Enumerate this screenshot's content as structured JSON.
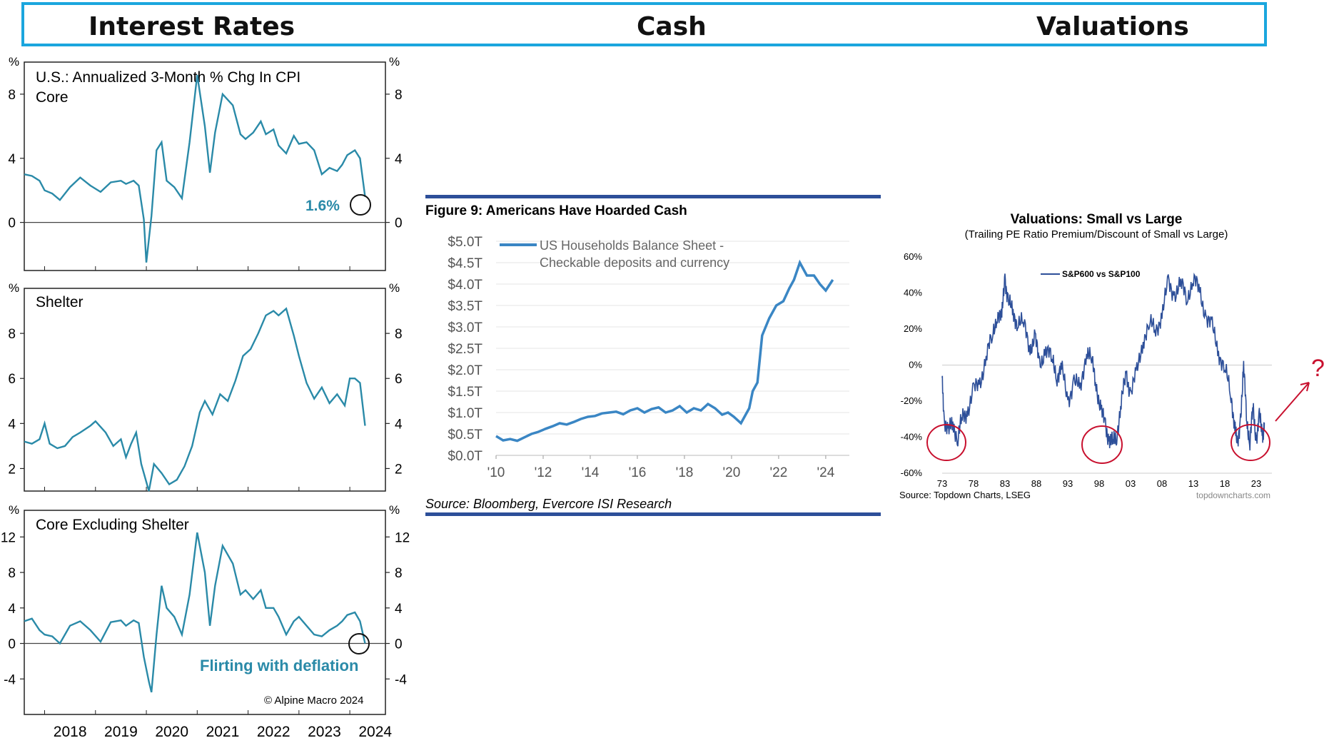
{
  "header": {
    "col1": "Interest Rates",
    "col2": "Cash",
    "col3": "Valuations"
  },
  "colors": {
    "header_border": "#1ba6de",
    "teal_line": "#2a8aa8",
    "teal_text": "#2a8aa8",
    "blue_line": "#3a86c4",
    "navy_line": "#2d4f99",
    "red_circle": "#c8102e"
  },
  "chart_data": [
    {
      "type": "line",
      "title": "U.S.: Annualized 3-Month % Chg In CPI Core",
      "unit_left": "%",
      "unit_right": "%",
      "ylim": [
        -3,
        10
      ],
      "yticks": [
        0,
        4,
        8
      ],
      "x_tick_labels": [
        "2018",
        "2019",
        "2020",
        "2021",
        "2022",
        "2023",
        "2024"
      ],
      "x_range": [
        2017.6,
        2024.7
      ],
      "annotation": "1.6%",
      "series": [
        {
          "name": "CPI Core",
          "x": [
            2017.6,
            2017.75,
            2017.9,
            2018.0,
            2018.15,
            2018.3,
            2018.5,
            2018.7,
            2018.9,
            2019.1,
            2019.3,
            2019.5,
            2019.6,
            2019.75,
            2019.85,
            2019.95,
            2020.0,
            2020.1,
            2020.2,
            2020.3,
            2020.4,
            2020.55,
            2020.7,
            2020.85,
            2021.0,
            2021.15,
            2021.25,
            2021.35,
            2021.5,
            2021.7,
            2021.85,
            2021.95,
            2022.1,
            2022.25,
            2022.35,
            2022.5,
            2022.6,
            2022.75,
            2022.9,
            2023.0,
            2023.15,
            2023.3,
            2023.45,
            2023.6,
            2023.75,
            2023.85,
            2023.95,
            2024.1,
            2024.2,
            2024.3
          ],
          "values": [
            3.0,
            2.9,
            2.6,
            2.0,
            1.8,
            1.4,
            2.2,
            2.8,
            2.3,
            1.9,
            2.5,
            2.6,
            2.4,
            2.6,
            2.3,
            0.2,
            -2.5,
            0.4,
            4.5,
            5.0,
            2.6,
            2.2,
            1.5,
            5.0,
            9.2,
            6.0,
            3.1,
            5.6,
            8.0,
            7.3,
            5.5,
            5.2,
            5.6,
            6.3,
            5.5,
            5.8,
            4.8,
            4.3,
            5.4,
            4.9,
            5.0,
            4.5,
            3.0,
            3.4,
            3.2,
            3.6,
            4.2,
            4.5,
            4.0,
            1.6
          ]
        }
      ]
    },
    {
      "type": "line",
      "title": "Shelter",
      "unit_left": "%",
      "unit_right": "%",
      "ylim": [
        1,
        10
      ],
      "yticks": [
        2,
        4,
        6,
        8
      ],
      "x_range": [
        2017.6,
        2024.7
      ],
      "series": [
        {
          "name": "Shelter",
          "x": [
            2017.6,
            2017.75,
            2017.9,
            2018.0,
            2018.1,
            2018.25,
            2018.4,
            2018.55,
            2018.7,
            2018.9,
            2019.0,
            2019.2,
            2019.35,
            2019.5,
            2019.6,
            2019.7,
            2019.8,
            2019.9,
            2020.05,
            2020.15,
            2020.3,
            2020.45,
            2020.6,
            2020.75,
            2020.9,
            2021.05,
            2021.15,
            2021.3,
            2021.45,
            2021.6,
            2021.75,
            2021.9,
            2022.05,
            2022.2,
            2022.35,
            2022.5,
            2022.6,
            2022.75,
            2022.9,
            2023.0,
            2023.15,
            2023.3,
            2023.45,
            2023.6,
            2023.75,
            2023.9,
            2024.0,
            2024.1,
            2024.2,
            2024.3
          ],
          "values": [
            3.2,
            3.1,
            3.3,
            4.0,
            3.1,
            2.9,
            3.0,
            3.4,
            3.6,
            3.9,
            4.1,
            3.6,
            3.0,
            3.3,
            2.5,
            3.1,
            3.6,
            2.2,
            1.0,
            2.2,
            1.8,
            1.3,
            1.5,
            2.1,
            3.0,
            4.5,
            5.0,
            4.4,
            5.3,
            5.0,
            5.9,
            7.0,
            7.3,
            8.0,
            8.8,
            9.0,
            8.8,
            9.1,
            7.9,
            7.0,
            5.8,
            5.1,
            5.6,
            4.9,
            5.3,
            4.8,
            6.0,
            6.0,
            5.8,
            3.9
          ]
        }
      ]
    },
    {
      "type": "line",
      "title": "Core Excluding Shelter",
      "unit_left": "%",
      "unit_right": "%",
      "ylim": [
        -8,
        15
      ],
      "yticks": [
        -4,
        0,
        4,
        8,
        12
      ],
      "x_range": [
        2017.6,
        2024.7
      ],
      "annotation": "Flirting with deflation",
      "credit": "© Alpine Macro 2024",
      "series": [
        {
          "name": "Core ex Shelter",
          "x": [
            2017.6,
            2017.75,
            2017.9,
            2018.0,
            2018.15,
            2018.3,
            2018.5,
            2018.7,
            2018.9,
            2019.1,
            2019.3,
            2019.5,
            2019.6,
            2019.75,
            2019.85,
            2019.95,
            2020.05,
            2020.1,
            2020.2,
            2020.3,
            2020.4,
            2020.55,
            2020.7,
            2020.85,
            2021.0,
            2021.15,
            2021.25,
            2021.35,
            2021.5,
            2021.7,
            2021.85,
            2021.95,
            2022.1,
            2022.25,
            2022.35,
            2022.5,
            2022.6,
            2022.75,
            2022.9,
            2023.0,
            2023.15,
            2023.3,
            2023.45,
            2023.6,
            2023.75,
            2023.85,
            2023.95,
            2024.1,
            2024.2,
            2024.3
          ],
          "values": [
            2.5,
            2.8,
            1.5,
            1.0,
            0.8,
            0.0,
            2.0,
            2.5,
            1.5,
            0.2,
            2.4,
            2.6,
            2.0,
            2.6,
            2.3,
            -1.5,
            -4.3,
            -5.5,
            1.0,
            6.5,
            4.0,
            3.0,
            1.0,
            5.5,
            12.5,
            8.0,
            2.0,
            6.5,
            11.0,
            9.0,
            5.5,
            6.0,
            5.0,
            6.0,
            4.0,
            4.0,
            3.0,
            1.0,
            2.5,
            3.0,
            2.0,
            1.0,
            0.8,
            1.5,
            2.0,
            2.5,
            3.2,
            3.5,
            2.5,
            0.0
          ]
        }
      ]
    },
    {
      "type": "line",
      "title": "Figure 9: Americans Have Hoarded Cash",
      "legend": [
        "US Households Balance Sheet -",
        "Checkable deposits and currency"
      ],
      "source": "Source: Bloomberg, Evercore ISI Research",
      "ylim": [
        0,
        5
      ],
      "ytick_labels": [
        "$0.0T",
        "$0.5T",
        "$1.0T",
        "$1.5T",
        "$2.0T",
        "$2.5T",
        "$3.0T",
        "$3.5T",
        "$4.0T",
        "$4.5T",
        "$5.0T"
      ],
      "ytick_values": [
        0,
        0.5,
        1,
        1.5,
        2,
        2.5,
        3,
        3.5,
        4,
        4.5,
        5
      ],
      "x_tick_labels": [
        "'10",
        "'12",
        "'14",
        "'16",
        "'18",
        "'20",
        "'22",
        "'24"
      ],
      "x_tick_values": [
        2010,
        2012,
        2014,
        2016,
        2018,
        2020,
        2022,
        2024
      ],
      "x_range": [
        2010,
        2024.7
      ],
      "series": [
        {
          "name": "US Households Balance Sheet - Checkable deposits and currency",
          "x": [
            2010.0,
            2010.3,
            2010.6,
            2010.9,
            2011.2,
            2011.5,
            2011.8,
            2012.1,
            2012.4,
            2012.7,
            2013.0,
            2013.3,
            2013.6,
            2013.9,
            2014.2,
            2014.5,
            2014.8,
            2015.1,
            2015.4,
            2015.7,
            2016.0,
            2016.3,
            2016.6,
            2016.9,
            2017.2,
            2017.5,
            2017.8,
            2018.1,
            2018.4,
            2018.7,
            2019.0,
            2019.3,
            2019.6,
            2019.85,
            2020.1,
            2020.4,
            2020.6,
            2020.75,
            2020.9,
            2021.1,
            2021.3,
            2021.6,
            2021.9,
            2022.2,
            2022.45,
            2022.65,
            2022.9,
            2023.2,
            2023.5,
            2023.75,
            2024.0,
            2024.3
          ],
          "values": [
            0.45,
            0.35,
            0.38,
            0.34,
            0.42,
            0.5,
            0.55,
            0.62,
            0.68,
            0.75,
            0.72,
            0.78,
            0.85,
            0.9,
            0.92,
            0.98,
            1.0,
            1.02,
            0.96,
            1.05,
            1.1,
            1.0,
            1.08,
            1.12,
            1.0,
            1.05,
            1.15,
            1.0,
            1.1,
            1.05,
            1.2,
            1.1,
            0.95,
            1.0,
            0.9,
            0.75,
            0.95,
            1.1,
            1.5,
            1.7,
            2.8,
            3.2,
            3.5,
            3.6,
            3.9,
            4.1,
            4.5,
            4.2,
            4.2,
            4.0,
            3.85,
            4.1
          ]
        }
      ]
    },
    {
      "type": "line",
      "title": "Valuations: Small vs Large",
      "subtitle": "(Trailing PE Ratio Premium/Discount of Small vs Large)",
      "legend": "S&P600 vs S&P100",
      "source": "Source: Topdown Charts, LSEG",
      "watermark": "topdowncharts.com",
      "question_mark": "?",
      "ylim": [
        -60,
        60
      ],
      "ytick_labels": [
        "60%",
        "40%",
        "20%",
        "0%",
        "-20%",
        "-40%",
        "-60%"
      ],
      "ytick_values": [
        60,
        40,
        20,
        0,
        -20,
        -40,
        -60
      ],
      "x_tick_labels": [
        "73",
        "78",
        "83",
        "88",
        "93",
        "98",
        "03",
        "08",
        "13",
        "18",
        "23"
      ],
      "x_tick_values": [
        1973,
        1978,
        1983,
        1988,
        1993,
        1998,
        2003,
        2008,
        2013,
        2018,
        2023
      ],
      "x_range": [
        1973,
        2025.5
      ],
      "series": [
        {
          "name": "S&P600 vs S&P100",
          "x": [
            1973.0,
            1973.3,
            1974.0,
            1974.7,
            1975.5,
            1976.2,
            1977.0,
            1978.0,
            1979.0,
            1980.0,
            1981.0,
            1981.8,
            1982.5,
            1983.0,
            1983.5,
            1984.3,
            1985.0,
            1986.0,
            1987.0,
            1987.8,
            1988.5,
            1989.5,
            1990.5,
            1991.3,
            1992.0,
            1993.0,
            1994.0,
            1995.0,
            1996.0,
            1996.8,
            1997.5,
            1998.3,
            1999.0,
            1999.6,
            2000.2,
            2000.8,
            2001.5,
            2002.3,
            2003.0,
            2004.0,
            2005.0,
            2006.0,
            2007.0,
            2008.0,
            2009.0,
            2010.0,
            2011.0,
            2012.0,
            2013.0,
            2014.0,
            2015.0,
            2016.0,
            2017.0,
            2018.0,
            2019.0,
            2019.6,
            2020.0,
            2020.5,
            2021.0,
            2021.5,
            2022.0,
            2022.5,
            2023.0,
            2023.5,
            2024.0,
            2024.3
          ],
          "values": [
            -10.0,
            -28.0,
            -38.0,
            -32.0,
            -40.0,
            -30.0,
            -25.0,
            -15.0,
            -10.0,
            5.0,
            15.0,
            30.0,
            25.0,
            50.0,
            35.0,
            28.0,
            25.0,
            22.0,
            10.0,
            15.0,
            0.0,
            10.0,
            2.0,
            -5.0,
            -2.0,
            -20.0,
            -8.0,
            -15.0,
            10.0,
            2.0,
            -10.0,
            -25.0,
            -35.0,
            -40.0,
            -44.0,
            -38.0,
            -22.0,
            -5.0,
            -15.0,
            -5.0,
            15.0,
            22.0,
            20.0,
            28.0,
            45.0,
            40.0,
            44.0,
            38.0,
            48.0,
            40.0,
            28.0,
            20.0,
            8.0,
            -2.0,
            -18.0,
            -32.0,
            -48.0,
            -28.0,
            -2.0,
            -30.0,
            -42.0,
            -25.0,
            -40.0,
            -30.0,
            -38.0,
            -32.0
          ]
        }
      ]
    }
  ]
}
